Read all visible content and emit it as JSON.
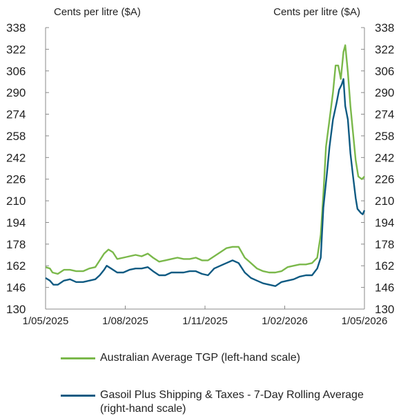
{
  "chart_data": {
    "type": "line",
    "left_axis_title": "Cents per litre ($A)",
    "right_axis_title": "Cents per litre ($A)",
    "y_ticks": [
      130,
      146,
      162,
      178,
      194,
      210,
      226,
      242,
      258,
      274,
      290,
      306,
      322,
      338
    ],
    "ylim_left": [
      130,
      338
    ],
    "ylim_right": [
      130,
      338
    ],
    "x_tick_labels": [
      "1/05/2025",
      "1/08/2025",
      "1/11/2025",
      "1/02/2026",
      "1/05/2026"
    ],
    "xlim": [
      "2025-05-01",
      "2026-05-01"
    ],
    "grid": false,
    "legend_position": "bottom",
    "series": [
      {
        "name": "Australian Average TGP (left-hand scale)",
        "color": "#7ab84a",
        "axis": "left",
        "points": [
          [
            "2025-05-01",
            161
          ],
          [
            "2025-05-06",
            160
          ],
          [
            "2025-05-09",
            157
          ],
          [
            "2025-05-15",
            156
          ],
          [
            "2025-05-22",
            159
          ],
          [
            "2025-05-29",
            159
          ],
          [
            "2025-06-05",
            158
          ],
          [
            "2025-06-13",
            158
          ],
          [
            "2025-06-20",
            160
          ],
          [
            "2025-06-27",
            161
          ],
          [
            "2025-07-02",
            166
          ],
          [
            "2025-07-07",
            171
          ],
          [
            "2025-07-12",
            174
          ],
          [
            "2025-07-17",
            172
          ],
          [
            "2025-07-22",
            167
          ],
          [
            "2025-07-29",
            168
          ],
          [
            "2025-08-05",
            169
          ],
          [
            "2025-08-12",
            170
          ],
          [
            "2025-08-19",
            169
          ],
          [
            "2025-08-26",
            171
          ],
          [
            "2025-09-01",
            168
          ],
          [
            "2025-09-08",
            165
          ],
          [
            "2025-09-15",
            166
          ],
          [
            "2025-09-22",
            167
          ],
          [
            "2025-09-29",
            168
          ],
          [
            "2025-10-06",
            167
          ],
          [
            "2025-10-13",
            167
          ],
          [
            "2025-10-20",
            168
          ],
          [
            "2025-10-27",
            166
          ],
          [
            "2025-11-03",
            166
          ],
          [
            "2025-11-10",
            169
          ],
          [
            "2025-11-17",
            172
          ],
          [
            "2025-11-24",
            175
          ],
          [
            "2025-12-01",
            176
          ],
          [
            "2025-12-08",
            176
          ],
          [
            "2025-12-15",
            168
          ],
          [
            "2025-12-22",
            164
          ],
          [
            "2025-12-29",
            160
          ],
          [
            "2026-01-05",
            158
          ],
          [
            "2026-01-12",
            157
          ],
          [
            "2026-01-19",
            157
          ],
          [
            "2026-01-26",
            158
          ],
          [
            "2026-02-02",
            161
          ],
          [
            "2026-02-09",
            162
          ],
          [
            "2026-02-16",
            163
          ],
          [
            "2026-02-23",
            163
          ],
          [
            "2026-03-02",
            164
          ],
          [
            "2026-03-08",
            168
          ],
          [
            "2026-03-12",
            185
          ],
          [
            "2026-03-15",
            215
          ],
          [
            "2026-03-18",
            250
          ],
          [
            "2026-03-22",
            270
          ],
          [
            "2026-03-26",
            290
          ],
          [
            "2026-03-29",
            310
          ],
          [
            "2026-04-01",
            310
          ],
          [
            "2026-04-04",
            300
          ],
          [
            "2026-04-07",
            320
          ],
          [
            "2026-04-09",
            325
          ],
          [
            "2026-04-12",
            305
          ],
          [
            "2026-04-15",
            280
          ],
          [
            "2026-04-18",
            260
          ],
          [
            "2026-04-21",
            240
          ],
          [
            "2026-04-24",
            228
          ],
          [
            "2026-04-28",
            226
          ],
          [
            "2026-05-01",
            228
          ]
        ]
      },
      {
        "name": "Gasoil Plus Shipping & Taxes - 7-Day Rolling Average (right-hand scale)",
        "color": "#0e5a82",
        "axis": "right",
        "points": [
          [
            "2025-05-01",
            153
          ],
          [
            "2025-05-06",
            151
          ],
          [
            "2025-05-10",
            148
          ],
          [
            "2025-05-15",
            148
          ],
          [
            "2025-05-22",
            151
          ],
          [
            "2025-05-29",
            152
          ],
          [
            "2025-06-05",
            150
          ],
          [
            "2025-06-13",
            150
          ],
          [
            "2025-06-20",
            151
          ],
          [
            "2025-06-27",
            152
          ],
          [
            "2025-07-02",
            155
          ],
          [
            "2025-07-07",
            159
          ],
          [
            "2025-07-10",
            162
          ],
          [
            "2025-07-15",
            160
          ],
          [
            "2025-07-22",
            157
          ],
          [
            "2025-07-29",
            157
          ],
          [
            "2025-08-05",
            159
          ],
          [
            "2025-08-12",
            160
          ],
          [
            "2025-08-19",
            160
          ],
          [
            "2025-08-26",
            161
          ],
          [
            "2025-09-01",
            158
          ],
          [
            "2025-09-08",
            155
          ],
          [
            "2025-09-15",
            155
          ],
          [
            "2025-09-22",
            157
          ],
          [
            "2025-09-29",
            157
          ],
          [
            "2025-10-06",
            157
          ],
          [
            "2025-10-13",
            158
          ],
          [
            "2025-10-20",
            158
          ],
          [
            "2025-10-27",
            156
          ],
          [
            "2025-11-03",
            155
          ],
          [
            "2025-11-10",
            160
          ],
          [
            "2025-11-17",
            162
          ],
          [
            "2025-11-24",
            164
          ],
          [
            "2025-12-01",
            166
          ],
          [
            "2025-12-08",
            164
          ],
          [
            "2025-12-15",
            157
          ],
          [
            "2025-12-22",
            153
          ],
          [
            "2025-12-29",
            151
          ],
          [
            "2026-01-05",
            149
          ],
          [
            "2026-01-12",
            148
          ],
          [
            "2026-01-19",
            147
          ],
          [
            "2026-01-26",
            150
          ],
          [
            "2026-02-02",
            151
          ],
          [
            "2026-02-09",
            152
          ],
          [
            "2026-02-16",
            154
          ],
          [
            "2026-02-23",
            155
          ],
          [
            "2026-03-02",
            155
          ],
          [
            "2026-03-08",
            160
          ],
          [
            "2026-03-12",
            168
          ],
          [
            "2026-03-15",
            205
          ],
          [
            "2026-03-19",
            230
          ],
          [
            "2026-03-22",
            250
          ],
          [
            "2026-03-26",
            270
          ],
          [
            "2026-03-30",
            282
          ],
          [
            "2026-04-02",
            292
          ],
          [
            "2026-04-05",
            296
          ],
          [
            "2026-04-07",
            300
          ],
          [
            "2026-04-09",
            280
          ],
          [
            "2026-04-12",
            270
          ],
          [
            "2026-04-15",
            245
          ],
          [
            "2026-04-18",
            228
          ],
          [
            "2026-04-21",
            212
          ],
          [
            "2026-04-23",
            204
          ],
          [
            "2026-04-27",
            201
          ],
          [
            "2026-04-29",
            200
          ],
          [
            "2026-05-01",
            203
          ]
        ]
      }
    ]
  }
}
